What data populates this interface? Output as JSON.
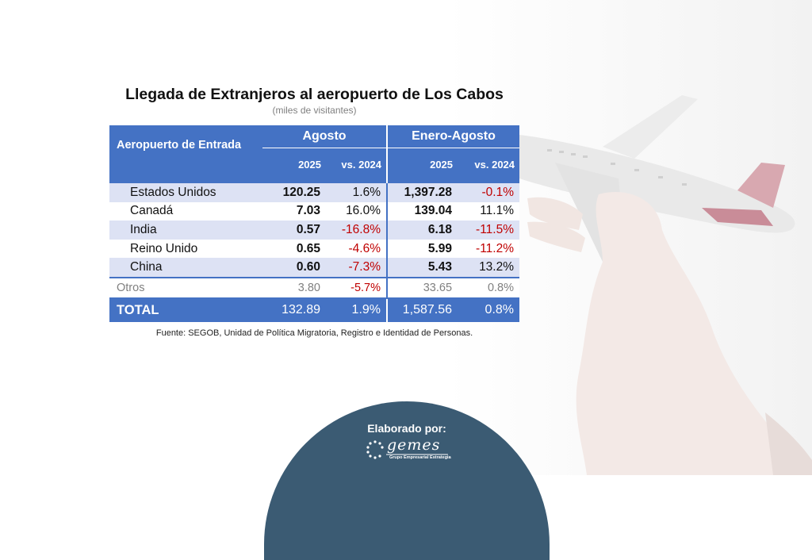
{
  "title": "Llegada de Extranjeros al aeropuerto de Los Cabos",
  "subtitle": "(miles de visitantes)",
  "table": {
    "header": {
      "entry_label": "Aeropuerto de Entrada",
      "group1": "Agosto",
      "group2": "Enero-Agosto",
      "col_year": "2025",
      "col_vs": "vs. 2024"
    },
    "rows": [
      {
        "name": "Estados Unidos",
        "ago_2025": "120.25",
        "ago_vs": "1.6%",
        "ea_2025": "1,397.28",
        "ea_vs": "-0.1%"
      },
      {
        "name": "Canadá",
        "ago_2025": "7.03",
        "ago_vs": "16.0%",
        "ea_2025": "139.04",
        "ea_vs": "11.1%"
      },
      {
        "name": "India",
        "ago_2025": "0.57",
        "ago_vs": "-16.8%",
        "ea_2025": "6.18",
        "ea_vs": "-11.5%"
      },
      {
        "name": "Reino Unido",
        "ago_2025": "0.65",
        "ago_vs": "-4.6%",
        "ea_2025": "5.99",
        "ea_vs": "-11.2%"
      },
      {
        "name": "China",
        "ago_2025": "0.60",
        "ago_vs": "-7.3%",
        "ea_2025": "5.43",
        "ea_vs": "13.2%"
      }
    ],
    "otros": {
      "name": "Otros",
      "ago_2025": "3.80",
      "ago_vs": "-5.7%",
      "ea_2025": "33.65",
      "ea_vs": "0.8%"
    },
    "total": {
      "name": "TOTAL",
      "ago_2025": "132.89",
      "ago_vs": "1.9%",
      "ea_2025": "1,587.56",
      "ea_vs": "0.8%"
    }
  },
  "source": "Fuente: SEGOB, Unidad de Política Migratoria, Registro e Identidad de Personas.",
  "footer": {
    "elaborado": "Elaborado por:",
    "logo_text": "gemes",
    "logo_sub": "Grupo Empresarial Estrategia"
  },
  "colors": {
    "header_blue": "#4472c4",
    "row_band": "#dde2f4",
    "negative_red": "#c00000",
    "footer_navy": "#3b5b73"
  },
  "background_image": "hand-holding-airplane"
}
